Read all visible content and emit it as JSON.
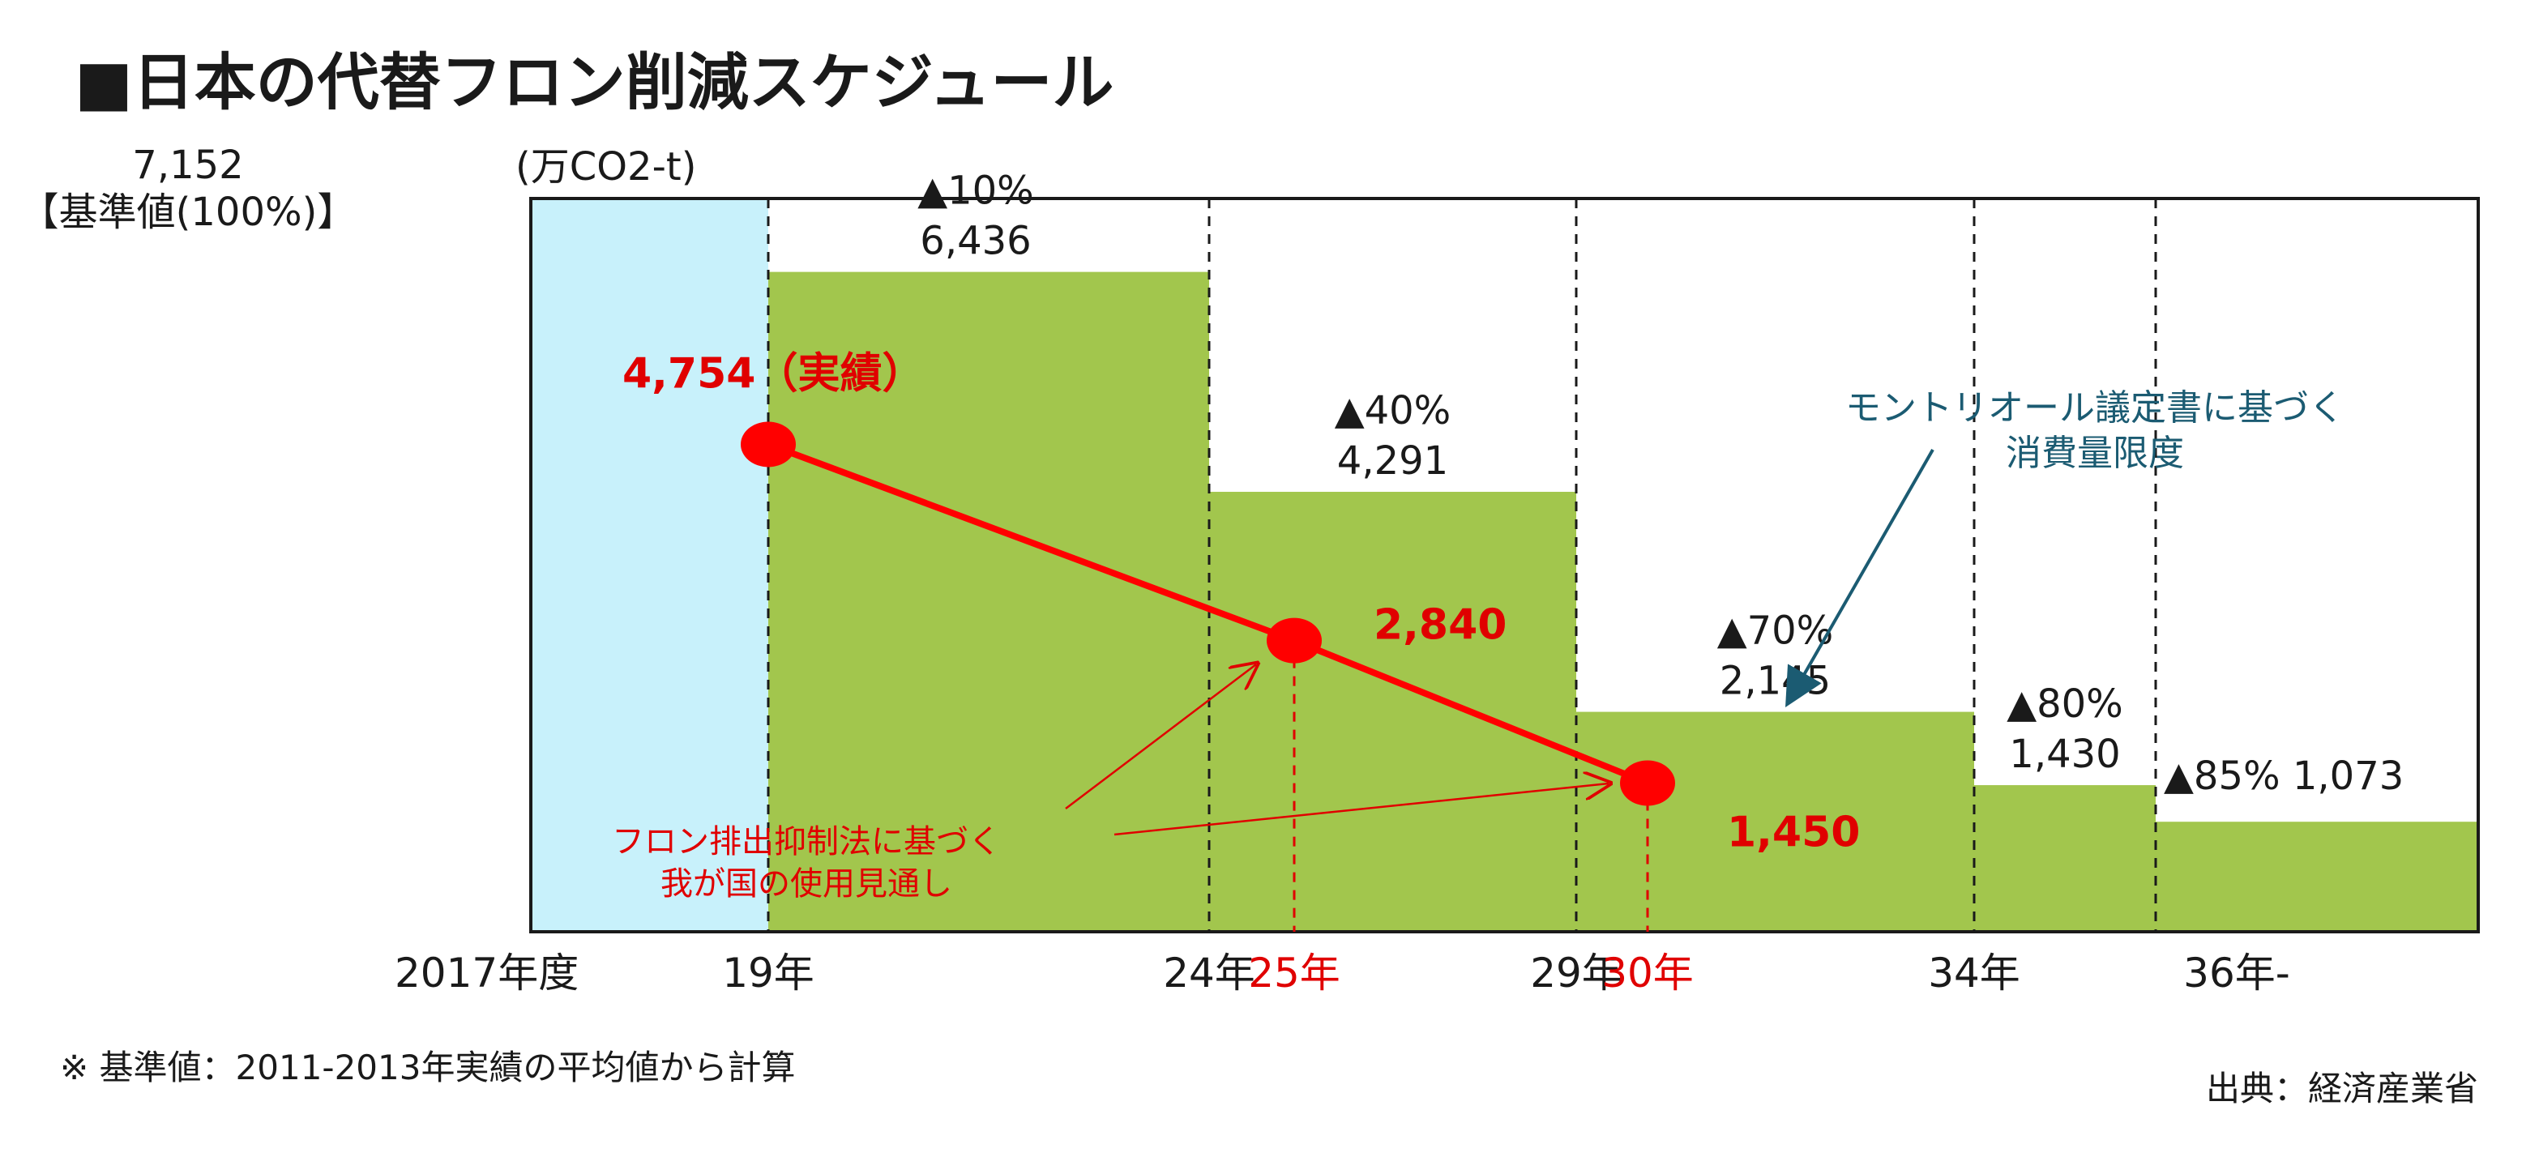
{
  "title": "■日本の代替フロン削減スケジュール",
  "unit": "(万CO2-t)",
  "baseline": {
    "value": "7,152",
    "label": "【基準値(100%)】"
  },
  "colors": {
    "baseline_fill": "#c8f1fb",
    "step_fill": "#a2c64d",
    "actual_red": "#ff0000",
    "annotation_teal": "#1b5b72"
  },
  "chart_data": {
    "type": "area",
    "ylim": [
      0,
      7152
    ],
    "x_boundaries": [
      2017,
      2019,
      2024,
      2029,
      2034,
      2036,
      2041
    ],
    "x_tick_labels": [
      {
        "x": 2017,
        "label": "2017年度",
        "color": "black"
      },
      {
        "x": 2019,
        "label": "19年",
        "color": "black"
      },
      {
        "x": 2024,
        "label": "24年",
        "color": "black"
      },
      {
        "x": 2025,
        "label": "25年",
        "color": "red"
      },
      {
        "x": 2029,
        "label": "29年",
        "color": "black"
      },
      {
        "x": 2030,
        "label": "30年",
        "color": "red"
      },
      {
        "x": 2034,
        "label": "34年",
        "color": "black"
      },
      {
        "x": 2036,
        "label": "36年-",
        "color": "black"
      }
    ],
    "steps": [
      {
        "from": 2017,
        "to": 2019,
        "value": 7152,
        "reduction": "",
        "value_label": ""
      },
      {
        "from": 2019,
        "to": 2024,
        "value": 6436,
        "reduction": "▲10%",
        "value_label": "6,436"
      },
      {
        "from": 2024,
        "to": 2029,
        "value": 4291,
        "reduction": "▲40%",
        "value_label": "4,291"
      },
      {
        "from": 2029,
        "to": 2034,
        "value": 2145,
        "reduction": "▲70%",
        "value_label": "2,145"
      },
      {
        "from": 2034,
        "to": 2036,
        "value": 1430,
        "reduction": "▲80%",
        "value_label": "1,430"
      },
      {
        "from": 2036,
        "to": 2041,
        "value": 1073,
        "reduction": "▲85%",
        "value_label": "1,073"
      }
    ],
    "line_series": {
      "points": [
        {
          "x": 2019,
          "y": 4754,
          "label": "4,754（実績）"
        },
        {
          "x": 2025,
          "y": 2840,
          "label": "2,840"
        },
        {
          "x": 2030,
          "y": 1450,
          "label": "1,450"
        }
      ]
    },
    "annotations": {
      "montreal": [
        "モントリオール議定書に基づく",
        "消費量限度"
      ],
      "japan_outlook": [
        "フロン排出抑制法に基づく",
        "我が国の使用見通し"
      ]
    }
  },
  "footnote": "※ 基準値：2011-2013年実績の平均値から計算",
  "source": "出典：経済産業省"
}
